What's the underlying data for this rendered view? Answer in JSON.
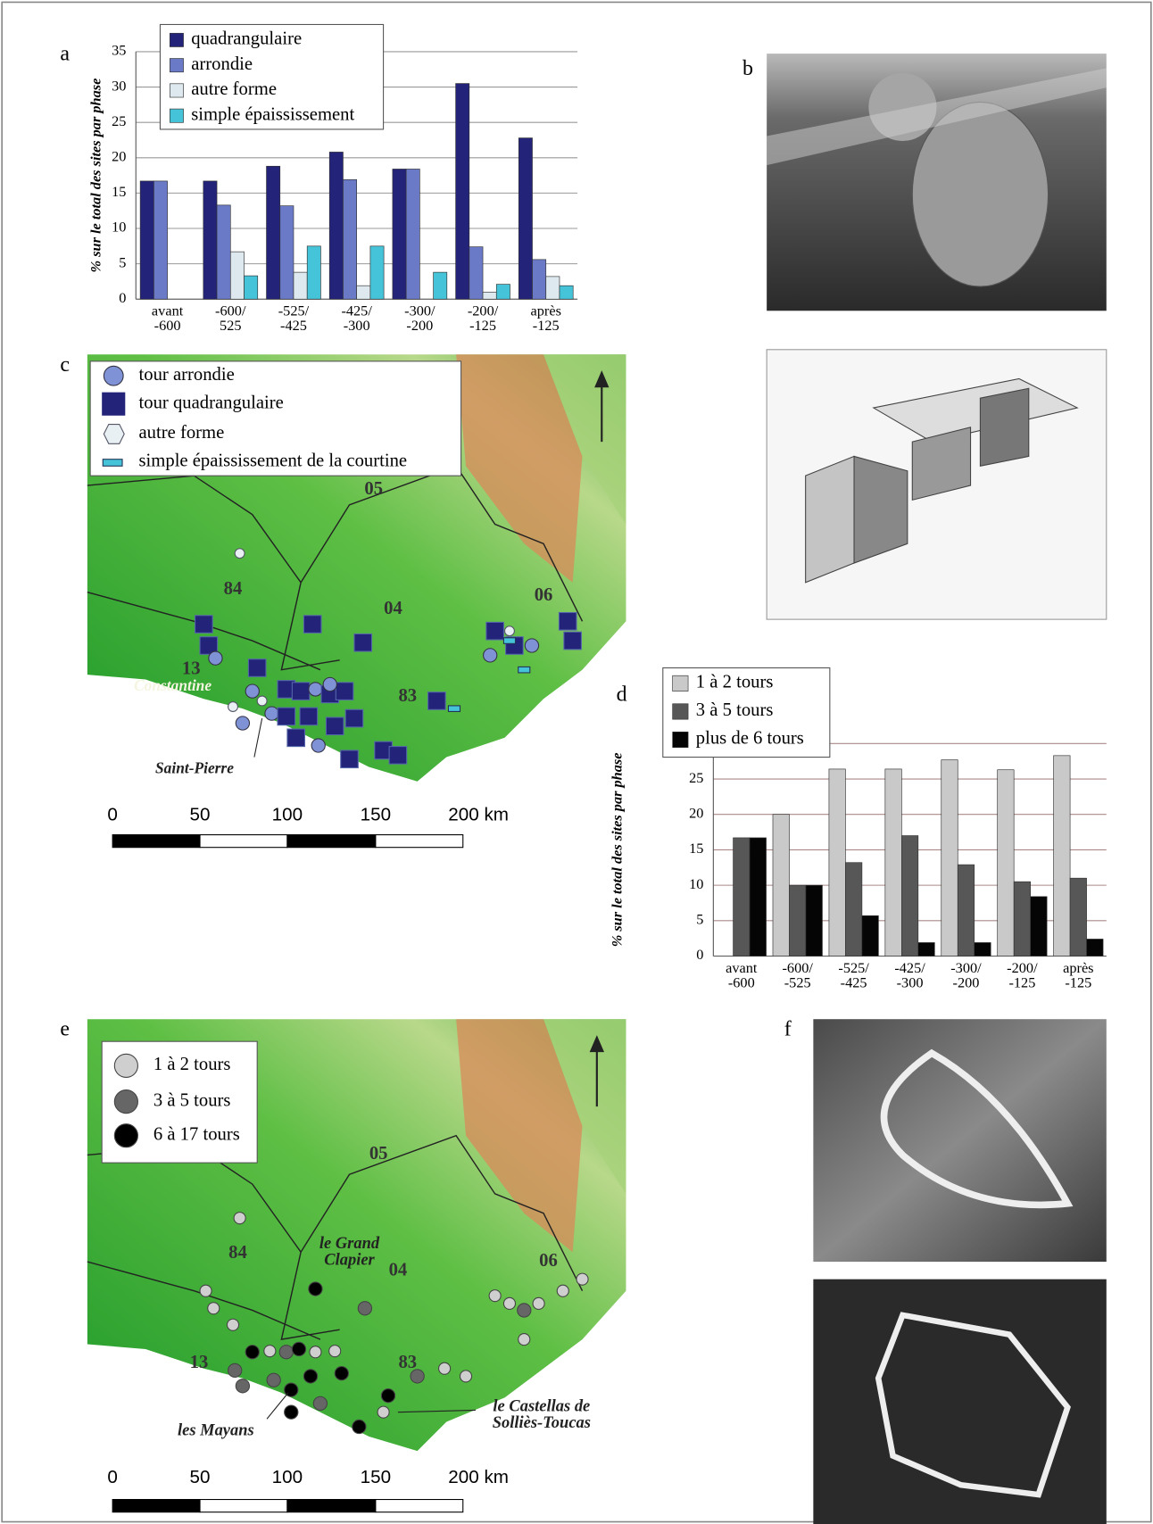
{
  "panels": [
    "a",
    "b",
    "c",
    "d",
    "e",
    "f"
  ],
  "chart_data": [
    {
      "type": "bar",
      "ylabel": "% sur le total des sites par phase",
      "categories": [
        "avant\n-600",
        "-600/\n525",
        "-525/\n-425",
        "-425/\n-300",
        "-300/\n-200",
        "-200/\n-125",
        "après\n-125"
      ],
      "series": [
        {
          "name": "quadrangulaire",
          "color": "#23237a",
          "values": [
            16.7,
            16.7,
            18.8,
            20.8,
            18.4,
            30.5,
            22.8
          ]
        },
        {
          "name": "arrondie",
          "color": "#6a7ac6",
          "values": [
            16.7,
            13.3,
            13.2,
            16.9,
            18.4,
            7.4,
            5.6
          ]
        },
        {
          "name": "autre forme",
          "color": "#dde9ee",
          "values": [
            0,
            6.7,
            3.8,
            1.9,
            0,
            1.0,
            3.2
          ]
        },
        {
          "name": "simple épaississement",
          "color": "#45c3d8",
          "values": [
            0,
            3.3,
            7.5,
            7.5,
            3.8,
            2.1,
            1.9
          ]
        }
      ],
      "ylim": [
        0,
        35
      ],
      "yticks": [
        0,
        5,
        10,
        15,
        20,
        25,
        30,
        35
      ],
      "grid": true,
      "legend": "upper left"
    },
    {
      "type": "bar",
      "ylabel": "% sur le total des sites par phase",
      "categories": [
        "avant\n-600",
        "-600/\n-525",
        "-525/\n-425",
        "-425/\n-300",
        "-300/\n-200",
        "-200/\n-125",
        "après\n-125"
      ],
      "series": [
        {
          "name": "1 à 2 tours",
          "color": "#c9c9c9",
          "values": [
            0,
            20,
            26.4,
            26.4,
            27.7,
            26.3,
            28.3
          ]
        },
        {
          "name": "3 à 5 tours",
          "color": "#575757",
          "values": [
            16.7,
            10,
            13.2,
            17,
            12.9,
            10.5,
            11
          ]
        },
        {
          "name": "plus de 6 tours",
          "color": "#050505",
          "values": [
            16.7,
            10,
            5.7,
            1.9,
            1.9,
            8.4,
            2.4
          ]
        }
      ],
      "ylim": [
        0,
        30
      ],
      "yticks": [
        0,
        5,
        10,
        15,
        20,
        25,
        30
      ],
      "grid": true,
      "legend": "upper left"
    }
  ],
  "map_c": {
    "legend": [
      "tour arrondie",
      "tour quadrangulaire",
      "autre forme",
      "simple épaississement de la courtine"
    ],
    "region_labels": [
      "05",
      "84",
      "04",
      "06",
      "13",
      "83"
    ],
    "place_labels": [
      "Constantine",
      "Saint-Pierre"
    ],
    "scale_labels": [
      "0",
      "50",
      "100",
      "150",
      "200 km"
    ]
  },
  "map_e": {
    "legend": [
      "1 à 2 tours",
      "3 à 5 tours",
      "6 à 17 tours"
    ],
    "region_labels": [
      "05",
      "84",
      "04",
      "06",
      "13",
      "83"
    ],
    "place_labels": [
      "le Grand\nClapier",
      "les Mayans",
      "le Castellas de\nSolliès-Toucas"
    ],
    "scale_labels": [
      "0",
      "50",
      "100",
      "150",
      "200 km"
    ]
  }
}
